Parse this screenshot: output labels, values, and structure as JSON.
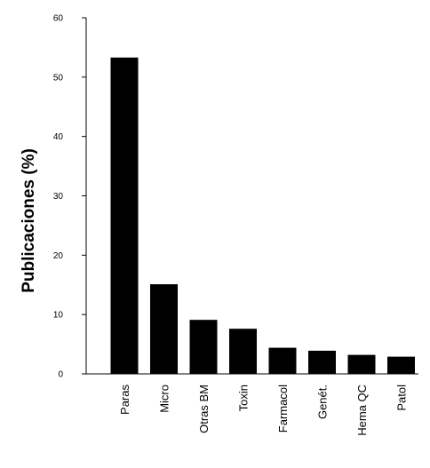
{
  "chart_data": {
    "type": "bar",
    "ylabel": "Publicaciones (%)",
    "xlabel": "",
    "ylim": [
      0,
      60
    ],
    "yticks": [
      0,
      10,
      20,
      30,
      40,
      50,
      60
    ],
    "categories": [
      "Paras",
      "Micro",
      "Otras BM",
      "Toxin",
      "Farmacol",
      "Genét.",
      "Hema QC",
      "Patol"
    ],
    "values": [
      53.3,
      15.1,
      9.1,
      7.6,
      4.4,
      3.9,
      3.2,
      2.9
    ],
    "bar_color": "#000000",
    "grid": false,
    "legend": "none"
  }
}
